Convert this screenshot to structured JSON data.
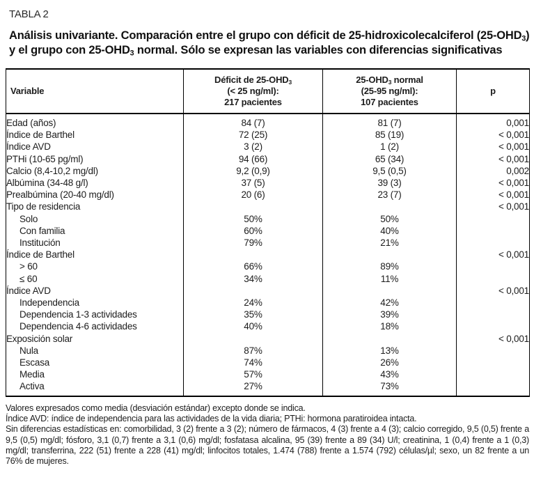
{
  "page": {
    "table_label": "TABLA 2",
    "title": {
      "part1": "Análisis univariante. Comparación entre el grupo con déficit de 25-hidroxicolecalciferol (25-OHD",
      "sub1": "3",
      "part2": ") y el grupo con 25-OHD",
      "sub2": "3",
      "part3": " normal. Sólo se expresan las variables con diferencias significativas"
    }
  },
  "table": {
    "header": {
      "col_variable": "Variable",
      "col_deficit": {
        "line1_pre": "Déficit de 25-OHD",
        "line1_sub": "3",
        "line1_post": "",
        "line2": "(< 25 ng/ml):",
        "line3": "217 pacientes"
      },
      "col_normal": {
        "line1_pre": "25-OHD",
        "line1_sub": "3",
        "line1_post": " normal",
        "line2": "(25-95 ng/ml):",
        "line3": "107 pacientes"
      },
      "col_p": "p"
    },
    "rows": [
      {
        "variable": "Edad (años)",
        "indent": false,
        "deficit": "84 (7)",
        "normal": "81 (7)",
        "p": "0,001"
      },
      {
        "variable": "Índice de Barthel",
        "indent": false,
        "deficit": "72 (25)",
        "normal": "85 (19)",
        "p": "< 0,001"
      },
      {
        "variable": "Índice AVD",
        "indent": false,
        "deficit": "3 (2)",
        "normal": "1 (2)",
        "p": "< 0,001"
      },
      {
        "variable": "PTHi (10-65 pg/ml)",
        "indent": false,
        "deficit": "94 (66)",
        "normal": "65 (34)",
        "p": "< 0,001"
      },
      {
        "variable": "Calcio (8,4-10,2 mg/dl)",
        "indent": false,
        "deficit": "9,2 (0,9)",
        "normal": "9,5 (0,5)",
        "p": "0,002"
      },
      {
        "variable": "Albúmina (34-48 g/l)",
        "indent": false,
        "deficit": "37 (5)",
        "normal": "39 (3)",
        "p": "< 0,001"
      },
      {
        "variable": "Prealbúmina (20-40 mg/dl)",
        "indent": false,
        "deficit": "20 (6)",
        "normal": "23 (7)",
        "p": "< 0,001"
      },
      {
        "variable": "Tipo de residencia",
        "indent": false,
        "deficit": "",
        "normal": "",
        "p": "< 0,001"
      },
      {
        "variable": "Solo",
        "indent": true,
        "deficit": "50%",
        "normal": "50%",
        "p": ""
      },
      {
        "variable": "Con familia",
        "indent": true,
        "deficit": "60%",
        "normal": "40%",
        "p": ""
      },
      {
        "variable": "Institución",
        "indent": true,
        "deficit": "79%",
        "normal": "21%",
        "p": ""
      },
      {
        "variable": "Índice de Barthel",
        "indent": false,
        "deficit": "",
        "normal": "",
        "p": "< 0,001"
      },
      {
        "variable": "> 60",
        "indent": true,
        "deficit": "66%",
        "normal": "89%",
        "p": ""
      },
      {
        "variable": "≤ 60",
        "indent": true,
        "deficit": "34%",
        "normal": "11%",
        "p": ""
      },
      {
        "variable": "Índice AVD",
        "indent": false,
        "deficit": "",
        "normal": "",
        "p": "< 0,001"
      },
      {
        "variable": "Independencia",
        "indent": true,
        "deficit": "24%",
        "normal": "42%",
        "p": ""
      },
      {
        "variable": "Dependencia 1-3 actividades",
        "indent": true,
        "deficit": "35%",
        "normal": "39%",
        "p": ""
      },
      {
        "variable": "Dependencia 4-6 actividades",
        "indent": true,
        "deficit": "40%",
        "normal": "18%",
        "p": ""
      },
      {
        "variable": "Exposición solar",
        "indent": false,
        "deficit": "",
        "normal": "",
        "p": "< 0,001"
      },
      {
        "variable": "Nula",
        "indent": true,
        "deficit": "87%",
        "normal": "13%",
        "p": ""
      },
      {
        "variable": "Escasa",
        "indent": true,
        "deficit": "74%",
        "normal": "26%",
        "p": ""
      },
      {
        "variable": "Media",
        "indent": true,
        "deficit": "57%",
        "normal": "43%",
        "p": ""
      },
      {
        "variable": "Activa",
        "indent": true,
        "deficit": "27%",
        "normal": "73%",
        "p": ""
      }
    ]
  },
  "footnotes": {
    "line1": "Valores expresados como media (desviación estándar) excepto donde se indica.",
    "line2": "Índice AVD: índice de independencia para las actividades de la vida diaria; PTHi: hormona paratiroidea intacta.",
    "line3": "Sin diferencias estadísticas en: comorbilidad, 3 (2) frente a 3 (2); número de fármacos, 4 (3) frente a 4 (3); calcio corregido, 9,5 (0,5) frente a 9,5 (0,5) mg/dl; fósforo, 3,1 (0,7) frente a 3,1 (0,6) mg/dl; fosfatasa alcalina, 95 (39) frente a 89 (34) U/l; creatinina, 1 (0,4) frente a 1 (0,3) mg/dl; transferrina, 222 (51) frente a 228 (41) mg/dl; linfocitos totales, 1.474 (788) frente a 1.574 (792) células/µl; sexo, un 82 frente a un 76% de mujeres."
  }
}
